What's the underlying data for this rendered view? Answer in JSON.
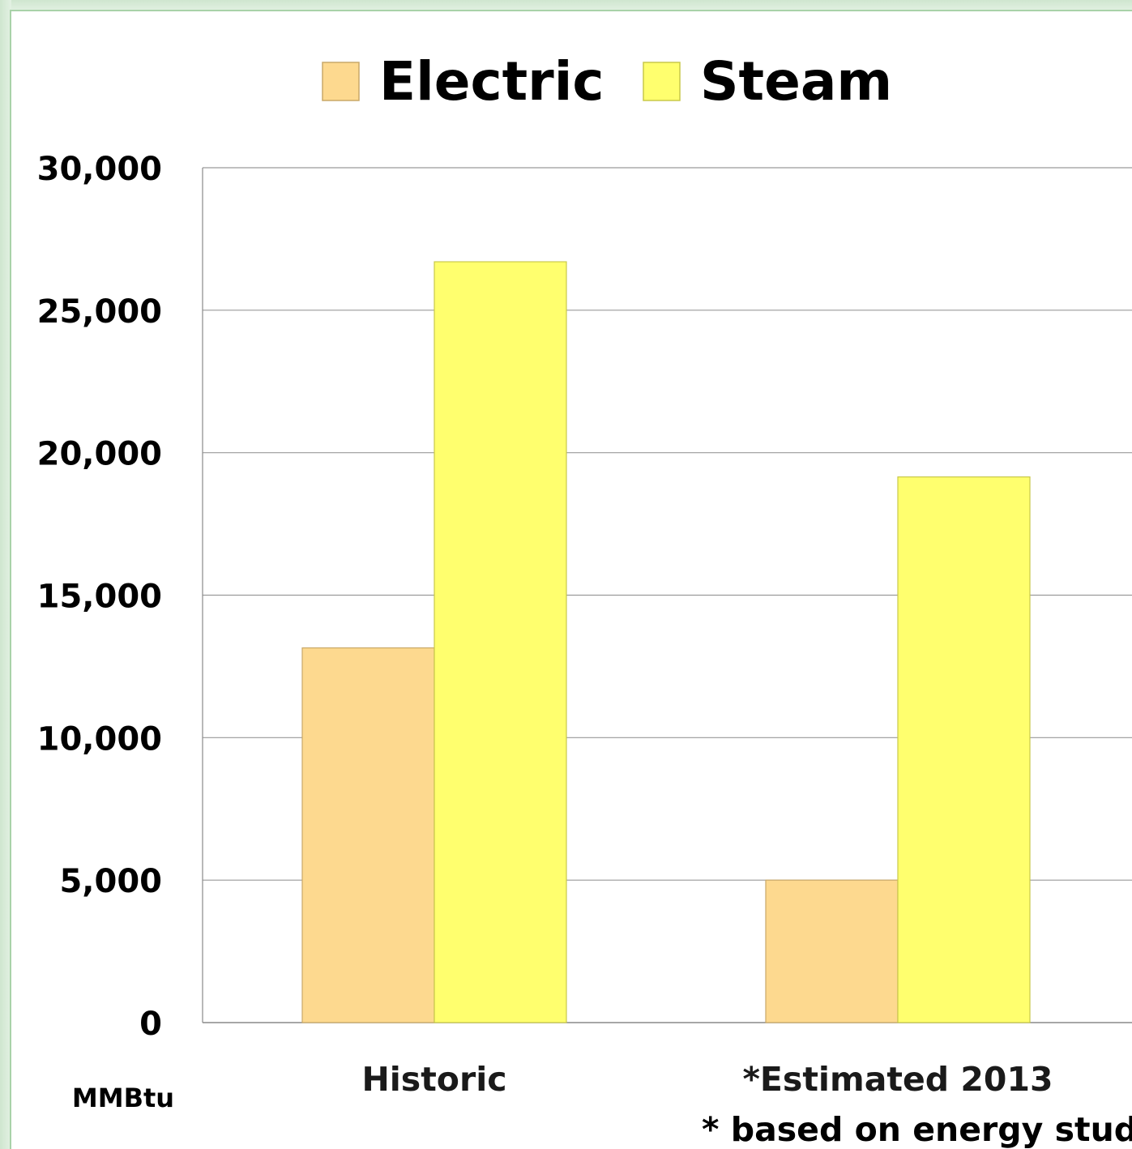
{
  "chart_data": {
    "type": "bar",
    "categories": [
      "Historic",
      "*Estimated 2013"
    ],
    "series": [
      {
        "name": "Electric",
        "color": "#fdd98f",
        "values": [
          13150,
          5000
        ]
      },
      {
        "name": "Steam",
        "color": "#ffff6e",
        "values": [
          26700,
          19150
        ]
      }
    ],
    "ylim": [
      0,
      30000
    ],
    "yticks": [
      0,
      5000,
      10000,
      15000,
      20000,
      25000,
      30000
    ],
    "ytick_labels": [
      "0",
      "5,000",
      "10,000",
      "15,000",
      "20,000",
      "25,000",
      "30,000"
    ],
    "unit_label": "MMBtu",
    "footnote": "* based on energy study",
    "grid": true,
    "legend_position": "top"
  }
}
